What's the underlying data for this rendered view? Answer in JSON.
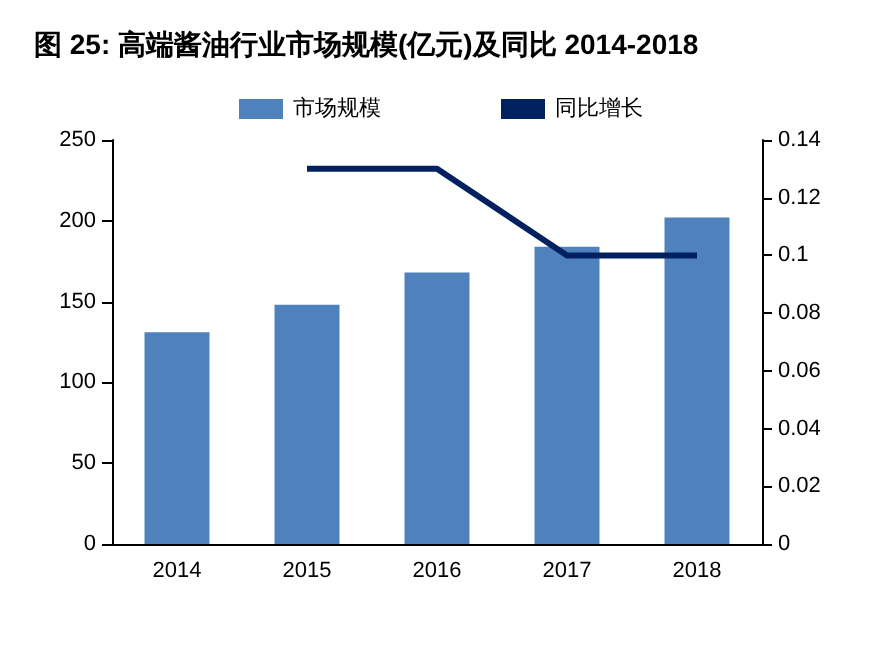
{
  "chart_data": {
    "type": "bar",
    "title": "图 25: 高端酱油行业市场规模(亿元)及同比 2014-2018",
    "categories": [
      "2014",
      "2015",
      "2016",
      "2017",
      "2018"
    ],
    "series": [
      {
        "name": "市场规模",
        "color": "#4f81bd",
        "values": [
          131,
          148,
          168,
          184,
          202
        ]
      },
      {
        "name": "同比增长",
        "type": "line",
        "color": "#002060",
        "axis": "y2",
        "values": [
          null,
          0.13,
          0.13,
          0.1,
          0.1
        ]
      }
    ],
    "ylim": [
      0,
      250
    ],
    "yticks": [
      0,
      50,
      100,
      150,
      200,
      250
    ],
    "y2lim": [
      0,
      0.14
    ],
    "y2ticks": [
      0,
      0.02,
      0.04,
      0.06,
      0.08,
      0.1,
      0.12,
      0.14
    ],
    "legend": "top",
    "grid": false,
    "marker": "none",
    "line_style": "solid"
  }
}
